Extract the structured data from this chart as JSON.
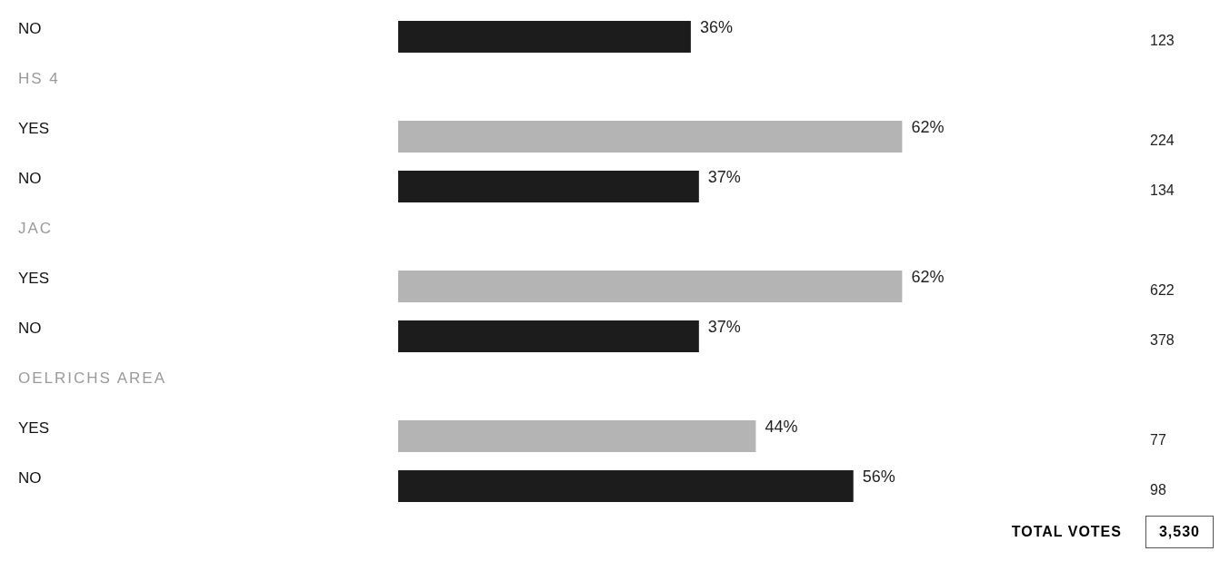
{
  "chart_data": {
    "type": "bar",
    "orientation": "horizontal",
    "categories": [
      "NO",
      "HS 4",
      "YES",
      "NO",
      "JAC",
      "YES",
      "NO",
      "OELRICHS AREA",
      "YES",
      "NO"
    ],
    "values": [
      36,
      null,
      62,
      37,
      null,
      62,
      37,
      null,
      44,
      56
    ],
    "colors": [
      "#1c1c1c",
      null,
      "#b4b4b4",
      "#1c1c1c",
      null,
      "#b4b4b4",
      "#1c1c1c",
      null,
      "#b4b4b4",
      "#1c1c1c"
    ],
    "value_labels": [
      "36%",
      null,
      "62%",
      "37%",
      null,
      "62%",
      "37%",
      null,
      "44%",
      "56%"
    ],
    "annotations": [
      "123",
      "224",
      "134",
      "622",
      "378",
      "77",
      "98",
      "TOTAL VOTES",
      "3,530"
    ]
  }
}
